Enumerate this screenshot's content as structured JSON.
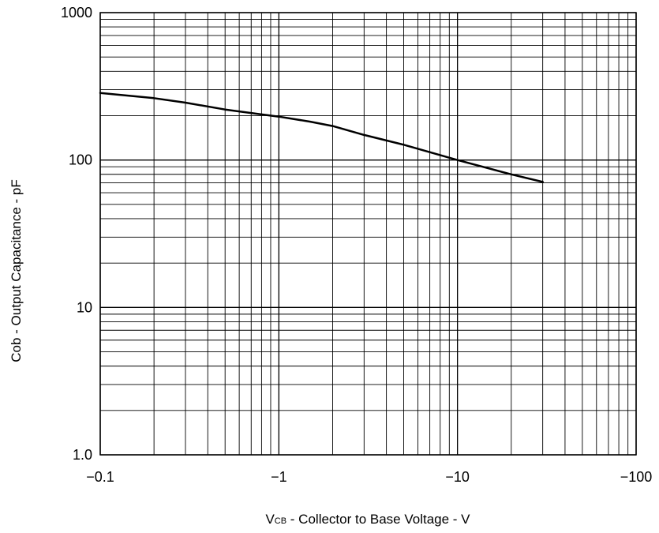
{
  "chart_data": {
    "type": "line",
    "title": "",
    "xlabel": {
      "prefix": "V",
      "subscript": "CB",
      "rest": " - Collector to Base Voltage - V"
    },
    "ylabel": "Cob - Output Capacitance - pF",
    "x_scale": "log",
    "y_scale": "log",
    "xlim": [
      -0.1,
      -100
    ],
    "ylim": [
      1.0,
      1000
    ],
    "x_ticks": [
      -0.1,
      -1,
      -10,
      -100
    ],
    "x_tick_labels": [
      "−0.1",
      "−1",
      "−10",
      "−100"
    ],
    "y_ticks": [
      1.0,
      10,
      100,
      1000
    ],
    "y_tick_labels": [
      "1.0",
      "10",
      "100",
      "1000"
    ],
    "grid": true,
    "legend": "none",
    "line_color": "#000000",
    "series": [
      {
        "x": [
          -0.1,
          -0.2,
          -0.3,
          -0.5,
          -0.8,
          -1,
          -1.5,
          -2,
          -3,
          -5,
          -10,
          -20,
          -30
        ],
        "y": [
          285,
          263,
          245,
          220,
          204,
          197,
          182,
          170,
          148,
          127,
          100,
          80,
          71
        ]
      }
    ]
  }
}
